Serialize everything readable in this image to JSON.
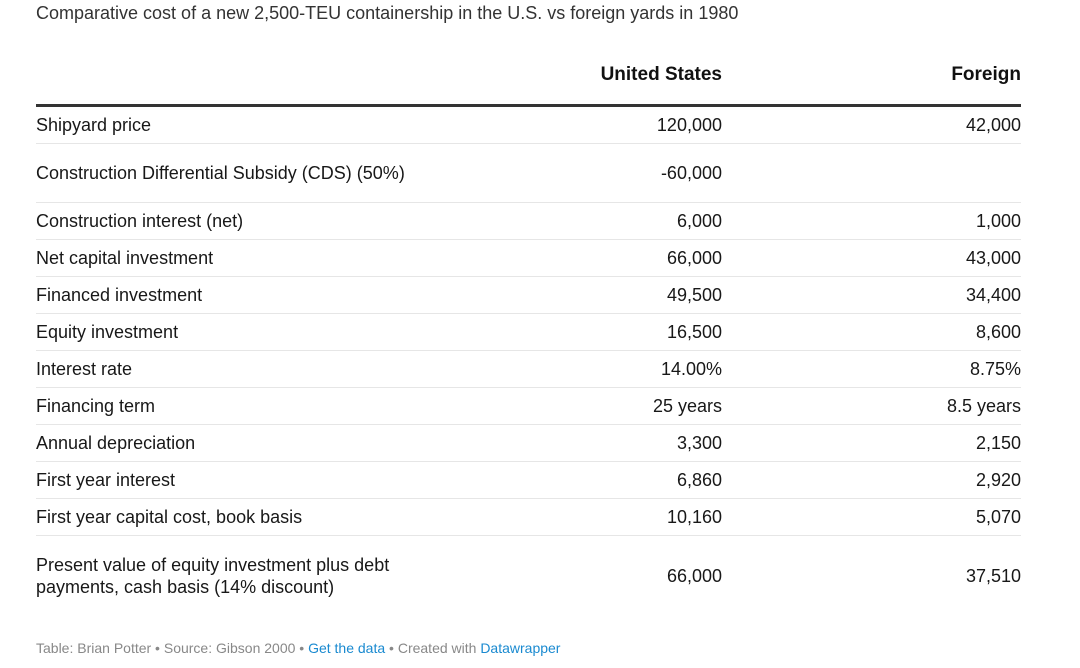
{
  "title": "Comparative cost of a new 2,500-TEU containership in the U.S. vs foreign yards in 1980",
  "table": {
    "columns": [
      "",
      "United States",
      "Foreign"
    ],
    "rows": [
      {
        "label": "Shipyard price",
        "us": "120,000",
        "foreign": "42,000",
        "lines": 1
      },
      {
        "label": "Construction Differential Subsidy (CDS) (50%)",
        "us": "-60,000",
        "foreign": "",
        "lines": 2
      },
      {
        "label": "Construction interest (net)",
        "us": "6,000",
        "foreign": "1,000",
        "lines": 1
      },
      {
        "label": "Net capital investment",
        "us": "66,000",
        "foreign": "43,000",
        "lines": 1
      },
      {
        "label": "Financed investment",
        "us": "49,500",
        "foreign": "34,400",
        "lines": 1
      },
      {
        "label": "Equity investment",
        "us": "16,500",
        "foreign": "8,600",
        "lines": 1
      },
      {
        "label": "Interest rate",
        "us": "14.00%",
        "foreign": "8.75%",
        "lines": 1
      },
      {
        "label": "Financing term",
        "us": "25 years",
        "foreign": "8.5 years",
        "lines": 1
      },
      {
        "label": "Annual depreciation",
        "us": "3,300",
        "foreign": "2,150",
        "lines": 1
      },
      {
        "label": "First year interest",
        "us": "6,860",
        "foreign": "2,920",
        "lines": 1
      },
      {
        "label": "First year capital cost, book basis",
        "us": "10,160",
        "foreign": "5,070",
        "lines": 1
      },
      {
        "label": "Present value of equity investment plus debt payments, cash basis (14% discount)",
        "us": "66,000",
        "foreign": "37,510",
        "lines": 3
      }
    ]
  },
  "footer": {
    "credit": "Table: Brian Potter",
    "source": "Source: Gibson 2000",
    "get_data": "Get the data",
    "created": "Created with",
    "tool": "Datawrapper",
    "separator": " • "
  },
  "colors": {
    "link": "#1a8ad0",
    "header_rule": "#333333",
    "row_rule": "#e6e6e6"
  }
}
